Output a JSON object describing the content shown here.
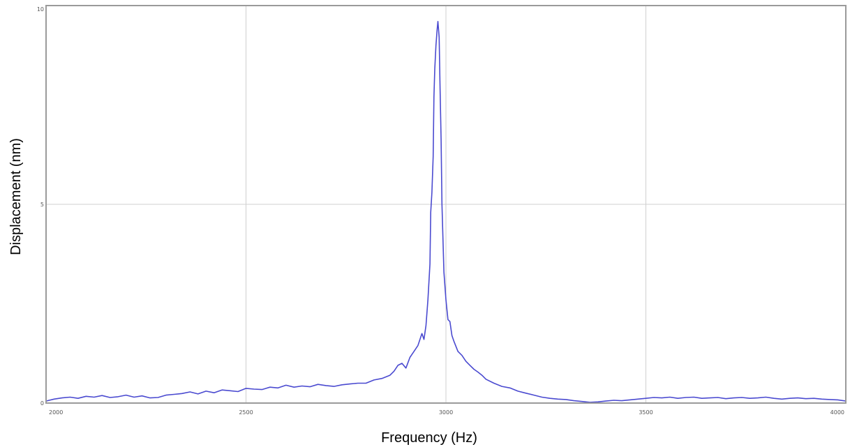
{
  "colors": {
    "trace": "#4a4ad0",
    "grid": "#cfcfcf",
    "axis": "#9a9a9a",
    "background": "#ffffff"
  },
  "chart_data": {
    "type": "line",
    "title": "",
    "xlabel": "Frequency (Hz)",
    "ylabel": "Displacement (nm)",
    "xlim": [
      2000,
      4000
    ],
    "ylim": [
      0,
      10
    ],
    "x_ticks": [
      2000,
      2500,
      3000,
      3500,
      4000
    ],
    "y_ticks": [
      0,
      5,
      10
    ],
    "x_tick_labels": [
      "2000",
      "2500",
      "3000",
      "3500",
      "4000"
    ],
    "y_tick_labels": [
      "0",
      "5",
      "10"
    ],
    "grid": true,
    "legend": "none",
    "series": [
      {
        "x": [
          2000,
          2020,
          2040,
          2060,
          2080,
          2100,
          2120,
          2140,
          2160,
          2180,
          2200,
          2220,
          2240,
          2260,
          2280,
          2300,
          2320,
          2340,
          2360,
          2380,
          2400,
          2420,
          2440,
          2460,
          2480,
          2500,
          2520,
          2540,
          2560,
          2580,
          2600,
          2620,
          2640,
          2660,
          2680,
          2700,
          2720,
          2740,
          2760,
          2780,
          2800,
          2820,
          2840,
          2860,
          2870,
          2880,
          2890,
          2900,
          2910,
          2920,
          2930,
          2940,
          2945,
          2950,
          2955,
          2960,
          2962,
          2965,
          2968,
          2970,
          2972,
          2975,
          2978,
          2980,
          2983,
          2985,
          2988,
          2990,
          2995,
          3000,
          3005,
          3010,
          3015,
          3020,
          3030,
          3040,
          3050,
          3060,
          3070,
          3080,
          3090,
          3100,
          3120,
          3140,
          3160,
          3180,
          3200,
          3220,
          3240,
          3260,
          3280,
          3300,
          3320,
          3340,
          3360,
          3380,
          3400,
          3420,
          3440,
          3460,
          3480,
          3500,
          3520,
          3540,
          3560,
          3580,
          3600,
          3620,
          3640,
          3660,
          3680,
          3700,
          3720,
          3740,
          3760,
          3780,
          3800,
          3820,
          3840,
          3860,
          3880,
          3900,
          3920,
          3940,
          3960,
          3980,
          4000
        ],
        "values": [
          0.05,
          0.1,
          0.13,
          0.15,
          0.12,
          0.17,
          0.15,
          0.19,
          0.14,
          0.16,
          0.2,
          0.15,
          0.18,
          0.13,
          0.14,
          0.2,
          0.22,
          0.24,
          0.28,
          0.23,
          0.3,
          0.26,
          0.33,
          0.31,
          0.29,
          0.37,
          0.35,
          0.34,
          0.4,
          0.38,
          0.45,
          0.4,
          0.43,
          0.41,
          0.47,
          0.44,
          0.42,
          0.46,
          0.48,
          0.5,
          0.5,
          0.58,
          0.62,
          0.7,
          0.8,
          0.95,
          1.0,
          0.88,
          1.15,
          1.3,
          1.45,
          1.75,
          1.6,
          1.95,
          2.6,
          3.5,
          4.8,
          5.3,
          6.2,
          7.7,
          8.4,
          9.0,
          9.4,
          9.6,
          9.2,
          8.1,
          6.6,
          5.0,
          3.3,
          2.6,
          2.1,
          2.05,
          1.7,
          1.55,
          1.3,
          1.2,
          1.05,
          0.95,
          0.85,
          0.78,
          0.7,
          0.6,
          0.5,
          0.42,
          0.38,
          0.3,
          0.25,
          0.2,
          0.15,
          0.12,
          0.1,
          0.09,
          0.06,
          0.04,
          0.02,
          0.03,
          0.05,
          0.07,
          0.06,
          0.08,
          0.1,
          0.12,
          0.14,
          0.13,
          0.15,
          0.12,
          0.14,
          0.15,
          0.12,
          0.13,
          0.14,
          0.11,
          0.13,
          0.14,
          0.12,
          0.13,
          0.15,
          0.12,
          0.1,
          0.12,
          0.13,
          0.11,
          0.12,
          0.1,
          0.09,
          0.08,
          0.05
        ]
      }
    ]
  }
}
